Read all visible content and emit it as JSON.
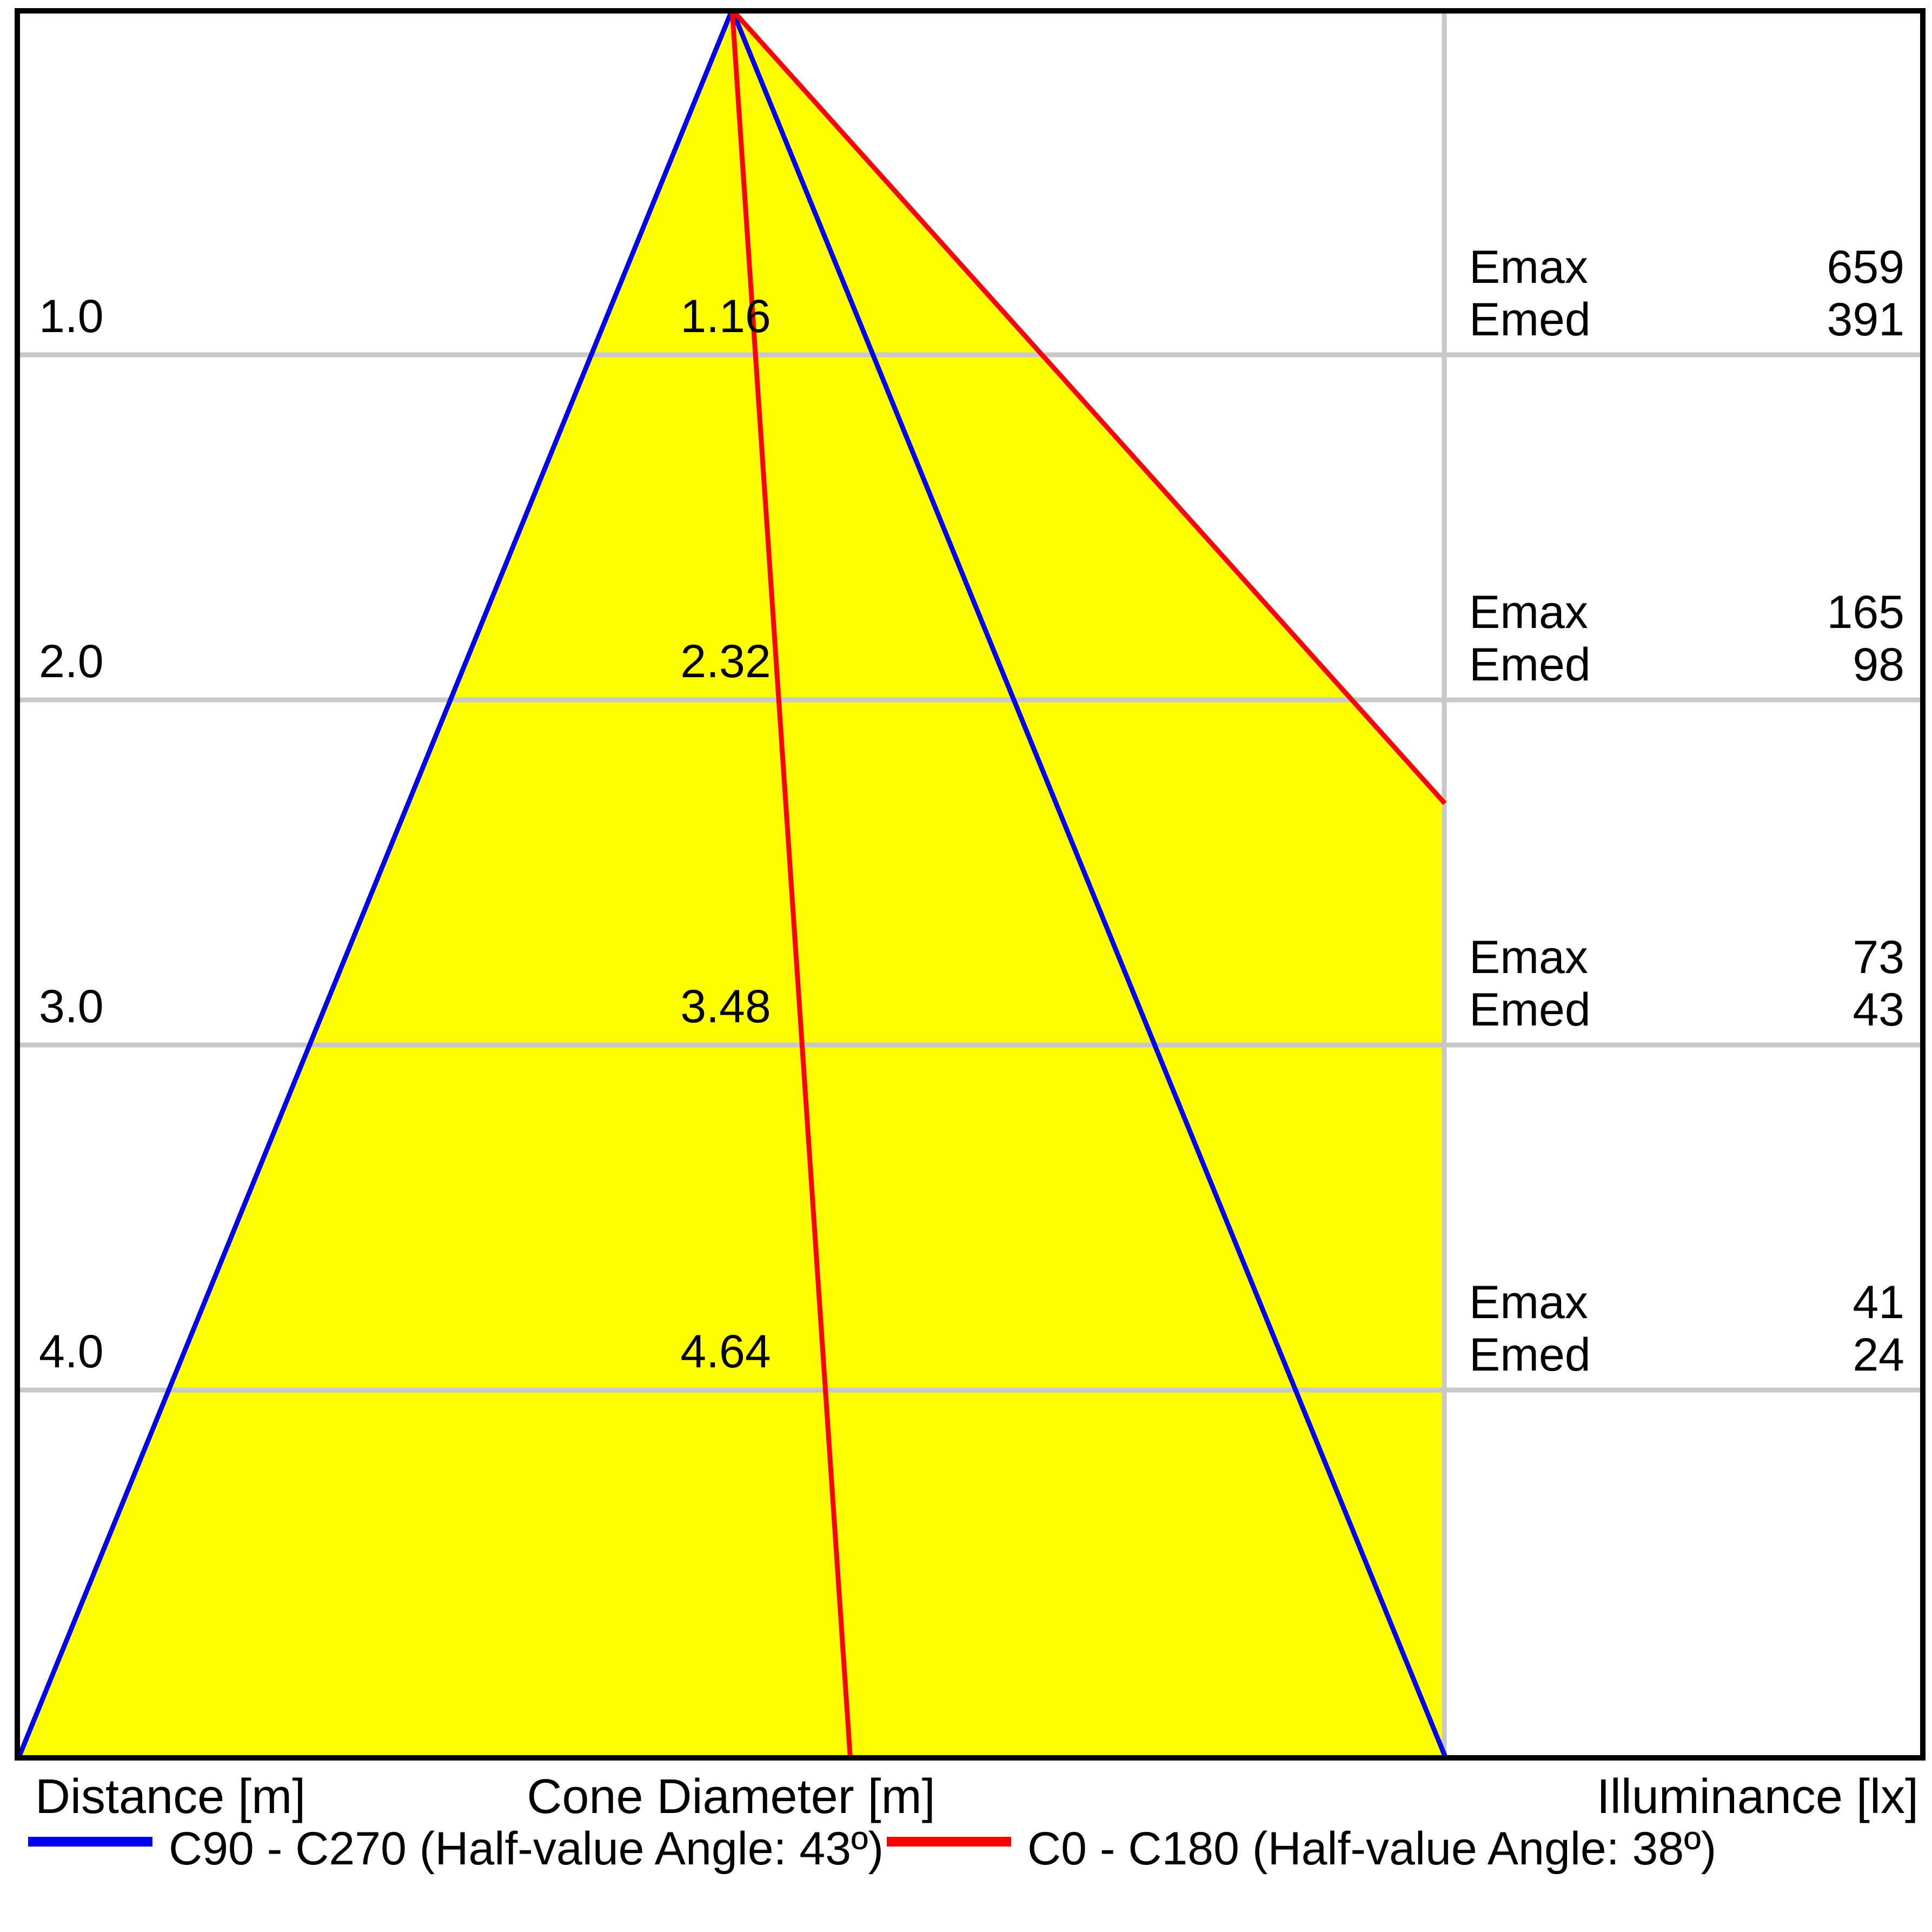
{
  "chart_data": {
    "type": "cone-diagram",
    "distance_axis_label": "Distance [m]",
    "cone_axis_label": "Cone Diameter [m]",
    "illuminance_axis_label": "Illuminance [lx]",
    "emax_label": "Emax",
    "emed_label": "Emed",
    "distance_ticks": [
      1,
      2,
      3,
      4
    ],
    "max_distance_m": 5.06,
    "rows": [
      {
        "d": 1,
        "distance": "1.0",
        "cone_diameter": "1.16",
        "emax": "659",
        "emed": "391"
      },
      {
        "d": 2,
        "distance": "2.0",
        "cone_diameter": "2.32",
        "emax": "165",
        "emed": "98"
      },
      {
        "d": 3,
        "distance": "3.0",
        "cone_diameter": "3.48",
        "emax": "73",
        "emed": "43"
      },
      {
        "d": 4,
        "distance": "4.0",
        "cone_diameter": "4.64",
        "emax": "41",
        "emed": "24"
      }
    ],
    "series": [
      {
        "id": "c90-c270",
        "label": "C90 - C270 (Half-value Angle: 43º)",
        "color": "#0000f0",
        "half_value_angle_deg": 43,
        "edges": [
          {
            "x_m": -2.96,
            "d_m": 5.06
          },
          {
            "x_m": 2.96,
            "d_m": 5.06
          }
        ]
      },
      {
        "id": "c0-c180",
        "label": "C0 - C180 (Half-value Angle: 38º)",
        "color": "#ff0000",
        "half_value_angle_deg": 38,
        "edges": [
          {
            "x_m": 0.49,
            "d_m": 5.06
          },
          {
            "x_m": 2.96,
            "d_m": 2.3
          }
        ]
      }
    ],
    "beam_fill_polygon_m": [
      [
        0,
        0
      ],
      [
        2.96,
        2.3
      ],
      [
        2.96,
        5.06
      ],
      [
        -2.96,
        5.06
      ]
    ],
    "beam_fill_color": "#ffff00",
    "grid_color": "#c8c8c8",
    "frame_color": "#000000",
    "background_color": "#ffffff",
    "text_color": "#000000"
  }
}
